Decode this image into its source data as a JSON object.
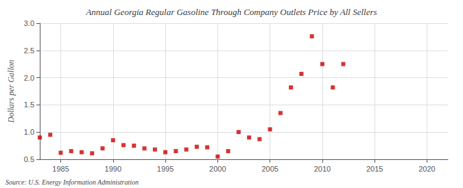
{
  "chart_data": {
    "type": "scatter",
    "title": "Annual Georgia Regular Gasoline Through Company Outlets Price by All Sellers",
    "ylabel": "Dollars per Gallon",
    "annotation": "Source: U.S. Energy Information Administration",
    "color": "#cc0000",
    "marker": "square",
    "grid": true,
    "xlim": [
      1983,
      2022
    ],
    "ylim": [
      0.5,
      3.0
    ],
    "xticks": [
      1985,
      1990,
      1995,
      2000,
      2005,
      2010,
      2015,
      2020
    ],
    "yticks": [
      0.5,
      {
        "value": 1.0,
        "label": "1.0"
      },
      1.5,
      {
        "value": 2.0,
        "label": "2.0"
      },
      2.5,
      {
        "value": 3.0,
        "label": "3.0"
      }
    ],
    "x": [
      1983,
      1984,
      1985,
      1986,
      1987,
      1988,
      1989,
      1990,
      1991,
      1992,
      1993,
      1994,
      1995,
      1996,
      1997,
      1998,
      1999,
      2000,
      2001,
      2002,
      2003,
      2004,
      2005,
      2006,
      2007,
      2008,
      2009,
      2010,
      2011,
      2012
    ],
    "values": [
      0.9,
      0.95,
      0.62,
      0.65,
      0.63,
      0.61,
      0.7,
      0.85,
      0.76,
      0.75,
      0.7,
      0.68,
      0.63,
      0.65,
      0.68,
      0.73,
      0.72,
      0.55,
      0.65,
      1.0,
      0.9,
      0.87,
      1.05,
      1.35,
      1.82,
      2.07,
      2.76,
      2.25,
      1.82,
      2.25
    ]
  }
}
